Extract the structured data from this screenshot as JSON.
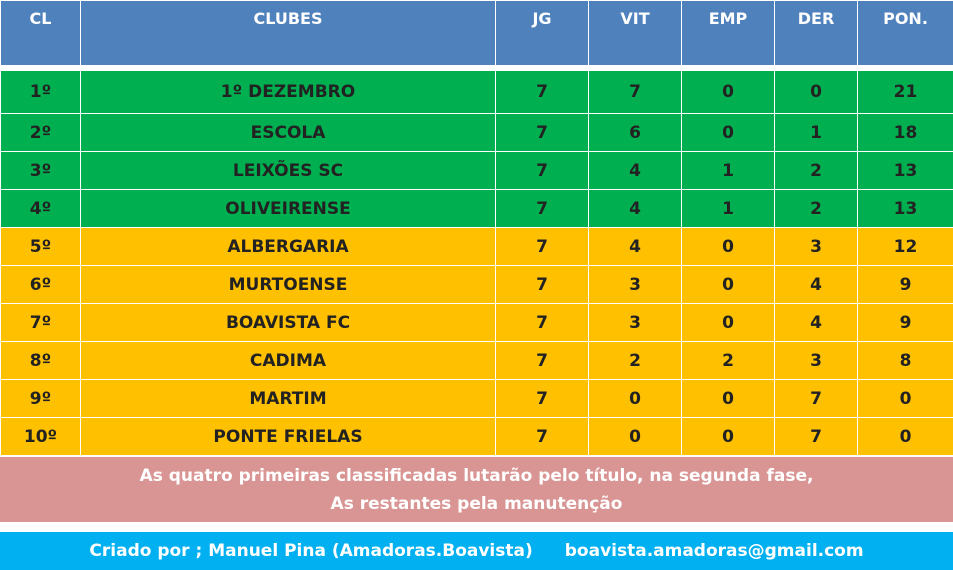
{
  "header": {
    "cl": "CL",
    "clubes": "CLUBES",
    "jg": "JG",
    "vit": "VIT",
    "emp": "EMP",
    "der": "DER",
    "pon": "PON."
  },
  "rows": [
    {
      "cl": "1º",
      "club": "1º  DEZEMBRO",
      "jg": "7",
      "vit": "7",
      "emp": "0",
      "der": "0",
      "pon": "21",
      "zone": "green"
    },
    {
      "cl": "2º",
      "club": "ESCOLA",
      "jg": "7",
      "vit": "6",
      "emp": "0",
      "der": "1",
      "pon": "18",
      "zone": "green"
    },
    {
      "cl": "3º",
      "club": "LEIXÕES SC",
      "jg": "7",
      "vit": "4",
      "emp": "1",
      "der": "2",
      "pon": "13",
      "zone": "green"
    },
    {
      "cl": "4º",
      "club": "OLIVEIRENSE",
      "jg": "7",
      "vit": "4",
      "emp": "1",
      "der": "2",
      "pon": "13",
      "zone": "green"
    },
    {
      "cl": "5º",
      "club": "ALBERGARIA",
      "jg": "7",
      "vit": "4",
      "emp": "0",
      "der": "3",
      "pon": "12",
      "zone": "yellow"
    },
    {
      "cl": "6º",
      "club": "MURTOENSE",
      "jg": "7",
      "vit": "3",
      "emp": "0",
      "der": "4",
      "pon": "9",
      "zone": "yellow"
    },
    {
      "cl": "7º",
      "club": "BOAVISTA FC",
      "jg": "7",
      "vit": "3",
      "emp": "0",
      "der": "4",
      "pon": "9",
      "zone": "yellow"
    },
    {
      "cl": "8º",
      "club": "CADIMA",
      "jg": "7",
      "vit": "2",
      "emp": "2",
      "der": "3",
      "pon": "8",
      "zone": "yellow"
    },
    {
      "cl": "9º",
      "club": "MARTIM",
      "jg": "7",
      "vit": "0",
      "emp": "0",
      "der": "7",
      "pon": "0",
      "zone": "yellow"
    },
    {
      "cl": "10º",
      "club": "PONTE  FRIELAS",
      "jg": "7",
      "vit": "0",
      "emp": "0",
      "der": "7",
      "pon": "0",
      "zone": "yellow"
    }
  ],
  "note": {
    "line1": "As quatro primeiras classificadas lutarão pelo título, na segunda fase,",
    "line2": "As restantes pela manutenção"
  },
  "credit": {
    "author": "Criado por ;  Manuel Pina (Amadoras.Boavista)",
    "email": "boavista.amadoras@gmail.com"
  },
  "colors": {
    "header": "#4f81bd",
    "title_zone": "#00b050",
    "survival_zone": "#ffc000",
    "note_bg": "#d99594",
    "credit_bg": "#00b0f0"
  }
}
